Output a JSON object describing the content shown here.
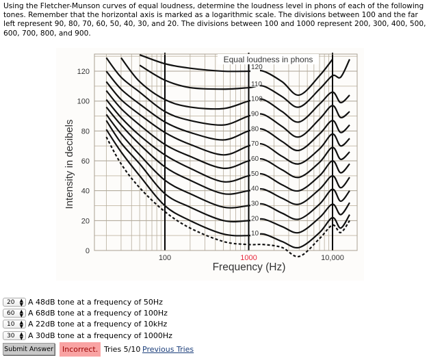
{
  "question": {
    "text": "Using the Fletcher-Munson curves of equal loudness, determine the loudness level in phons of each of the following tones. Remember that the horizontal axis is marked as a logarithmic scale. The divisions between 100 and the far left represent 90, 80, 70, 60, 50, 40, 30, and 20. The divisions between 100 and 1000 represent 200, 300, 400, 500, 600, 700, 800, and 900."
  },
  "chart_data": {
    "type": "line",
    "title": "Equal loudness in phons",
    "xlabel": "Frequency (Hz)",
    "ylabel": "Intensity in decibels",
    "x_scale": "log",
    "xlim": [
      14,
      20000
    ],
    "ylim": [
      0,
      131
    ],
    "x_ticks": [
      {
        "value": 100,
        "label": "100"
      },
      {
        "value": 1000,
        "label": "1000",
        "color": "#e8283c"
      },
      {
        "value": 10000,
        "label": "10,000"
      }
    ],
    "y_ticks": [
      {
        "value": 0,
        "label": "0"
      },
      {
        "value": 20,
        "label": "20"
      },
      {
        "value": 40,
        "label": "40"
      },
      {
        "value": 60,
        "label": "60"
      },
      {
        "value": 80,
        "label": "80"
      },
      {
        "value": 100,
        "label": "100"
      },
      {
        "value": 120,
        "label": "120"
      }
    ],
    "grid": true,
    "x": [
      20,
      30,
      50,
      100,
      200,
      500,
      1000,
      1500,
      2500,
      4000,
      7000,
      10000,
      12500,
      16000
    ],
    "series": [
      {
        "name": "10",
        "values": [
          81,
          66,
          50,
          30,
          20,
          11,
          10,
          11,
          6,
          2,
          12,
          22,
          15,
          24
        ]
      },
      {
        "name": "20",
        "values": [
          87,
          72,
          58,
          38,
          29,
          20,
          20,
          21,
          16,
          12,
          22,
          31,
          24,
          32
        ]
      },
      {
        "name": "30",
        "values": [
          91,
          78,
          64,
          47,
          38,
          29,
          30,
          31,
          25,
          21,
          31,
          41,
          33,
          40
        ]
      },
      {
        "name": "40",
        "values": [
          96,
          84,
          71,
          56,
          47,
          38,
          40,
          41,
          35,
          31,
          41,
          50,
          42,
          49
        ]
      },
      {
        "name": "50",
        "values": [
          101,
          89,
          77,
          64,
          55,
          46,
          50,
          51,
          44,
          40,
          50,
          60,
          52,
          58
        ]
      },
      {
        "name": "60",
        "values": [
          107,
          95,
          84,
          71,
          63,
          55,
          60,
          61,
          54,
          49,
          59,
          69,
          61,
          66
        ]
      },
      {
        "name": "70",
        "values": [
          113,
          101,
          91,
          79,
          71,
          64,
          70,
          71,
          63,
          58,
          68,
          78,
          70,
          75
        ]
      },
      {
        "name": "80",
        "values": [
          120,
          108,
          98,
          86,
          79,
          74,
          80,
          81,
          73,
          67,
          78,
          87,
          79,
          84
        ]
      },
      {
        "name": "90",
        "values": [
          129,
          116,
          106,
          93,
          87,
          84,
          90,
          91,
          83,
          76,
          88,
          97,
          89,
          93
        ]
      },
      {
        "name": "100",
        "values": [
          null,
          129,
          113,
          101,
          96,
          95,
          100,
          101,
          93,
          86,
          98,
          106,
          99,
          104
        ]
      },
      {
        "name": "110",
        "values": [
          null,
          null,
          124,
          114,
          109,
          108,
          109,
          110,
          103,
          96,
          108,
          117,
          116,
          128
        ]
      },
      {
        "name": "120",
        "values": [
          null,
          null,
          131,
          125,
          122,
          120,
          120,
          120,
          113,
          104,
          117,
          128,
          null,
          null
        ]
      }
    ],
    "threshold": {
      "style": "dashed",
      "values": [
        76,
        58,
        42,
        26,
        15,
        6,
        4,
        4,
        2,
        -4,
        8,
        17,
        12,
        20
      ]
    }
  },
  "answers": [
    {
      "selected": "20",
      "text": "A 48dB tone at a frequency of 50Hz"
    },
    {
      "selected": "60",
      "text": "A 68dB tone at a frequency of 100Hz"
    },
    {
      "selected": "10",
      "text": "A 22dB tone at a frequency of 10kHz"
    },
    {
      "selected": "30",
      "text": "A 30dB tone at a frequency of 1000Hz"
    }
  ],
  "submit_label": "Submit Answer",
  "status": "Incorrect.",
  "tries": "Tries 5/10",
  "previous_tries": "Previous Tries"
}
